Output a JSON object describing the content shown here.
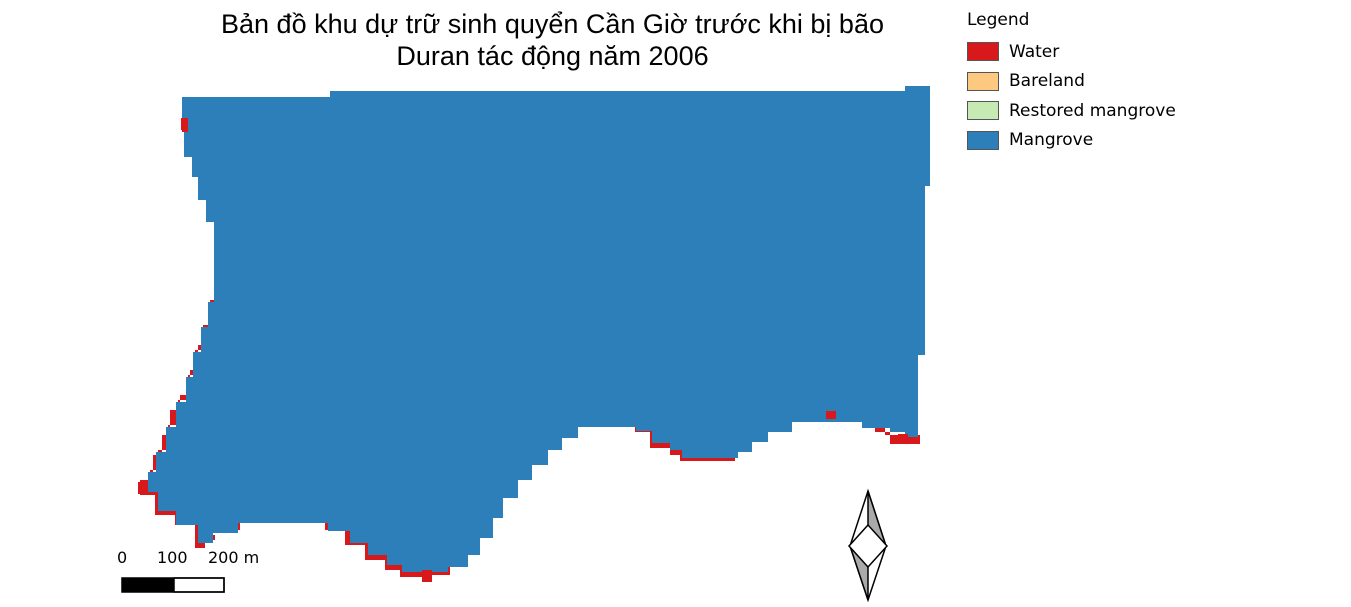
{
  "map": {
    "title_line1": "Bản đồ khu dự trữ sinh quyển Cần Giờ trước khi bị bão",
    "title_line2": "Duran tác động năm 2006"
  },
  "legend": {
    "title": "Legend",
    "items": [
      {
        "label": "Water",
        "color": "#d7191c"
      },
      {
        "label": "Bareland",
        "color": "#fdc980"
      },
      {
        "label": "Restored mangrove",
        "color": "#c7e9b4"
      },
      {
        "label": "Mangrove",
        "color": "#2c7fb8"
      }
    ]
  },
  "scale_bar": {
    "labels": [
      "0",
      "100",
      "200 m"
    ]
  },
  "north_arrow": {
    "icon": "north-arrow-icon"
  }
}
